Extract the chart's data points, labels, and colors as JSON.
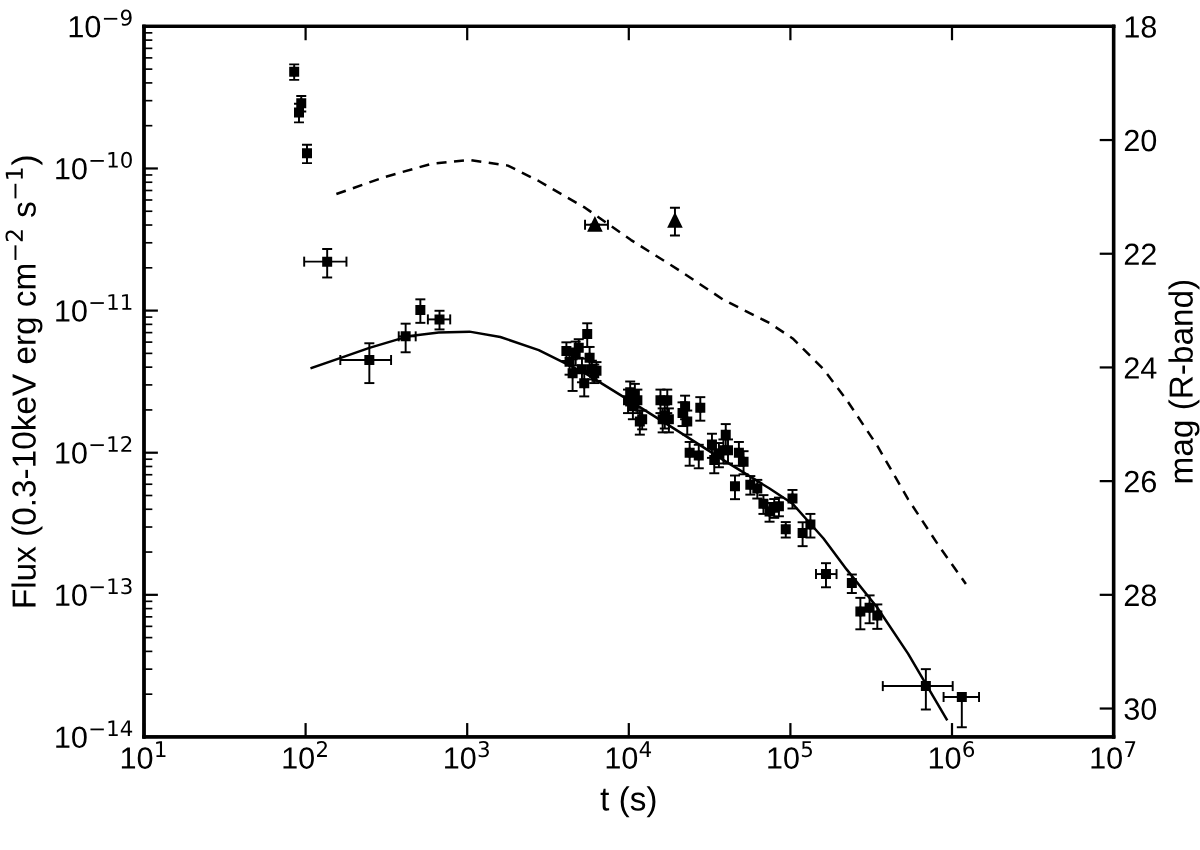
{
  "chart_data": {
    "type": "scatter",
    "xlabel": "t (s)",
    "ylabel": "Flux (0.3-10keV erg cm$^{−2}$ s$^{−1}$)",
    "y2label": "mag (R-band)",
    "log": "xy",
    "grid": false,
    "legend": false,
    "xlim": [
      10,
      10000000
    ],
    "xticks": [
      {
        "value": 10,
        "label": "10$^{1}$"
      },
      {
        "value": 100,
        "label": "10$^{2}$"
      },
      {
        "value": 1000,
        "label": "10$^{3}$"
      },
      {
        "value": 10000,
        "label": "10$^{4}$"
      },
      {
        "value": 100000,
        "label": "10$^{5}$"
      },
      {
        "value": 1000000,
        "label": "10$^{6}$"
      },
      {
        "value": 10000000,
        "label": "10$^{7}$"
      }
    ],
    "ylim": [
      1e-14,
      1e-09
    ],
    "yticks": [
      {
        "value": 1e-14,
        "label": "10$^{−14}$"
      },
      {
        "value": 1e-13,
        "label": "10$^{−13}$"
      },
      {
        "value": 1e-12,
        "label": "10$^{−12}$"
      },
      {
        "value": 1e-11,
        "label": "10$^{−11}$"
      },
      {
        "value": 1e-10,
        "label": "10$^{−10}$"
      },
      {
        "value": 1e-09,
        "label": "10$^{−9}$"
      }
    ],
    "y2lim": [
      30.5,
      18
    ],
    "y2ticks": [
      18,
      20,
      22,
      24,
      26,
      28,
      30
    ],
    "series": [
      {
        "type": "scatter",
        "marker": "square",
        "color": "#000000",
        "x": [
          85,
          91,
          94,
          102,
          136,
          248,
          416,
          513,
          674,
          4110,
          4300,
          4490,
          4690,
          4900,
          5130,
          5300,
          5530,
          5720,
          5910,
          6110,
          6310,
          9890,
          10200,
          10600,
          10900,
          11300,
          11700,
          12100,
          15700,
          16200,
          16700,
          17300,
          17700,
          21500,
          22300,
          23000,
          23800,
          27700,
          27100,
          32700,
          33800,
          36100,
          38500,
          39800,
          41100,
          45400,
          48000,
          51300,
          56500,
          62400,
          68100,
          74300,
          79400,
          84900,
          93600,
          103000,
          119000,
          133000,
          166000,
          240000,
          271000,
          309000,
          345000,
          689000,
          1150000
        ],
        "values": [
          4.8e-10,
          2.48e-10,
          2.88e-10,
          1.28e-10,
          2.21e-11,
          4.49e-12,
          6.59e-12,
          1.01e-11,
          8.67e-12,
          5.2e-12,
          4.37e-12,
          3.63e-12,
          5.08e-12,
          5.47e-12,
          3.86e-12,
          3.08e-12,
          6.84e-12,
          4.66e-12,
          3.86e-12,
          3.63e-12,
          3.77e-12,
          2.34e-12,
          2.66e-12,
          2.12e-12,
          2.56e-12,
          2.34e-12,
          1.66e-12,
          1.72e-12,
          2.34e-12,
          1.72e-12,
          1.83e-12,
          2.34e-12,
          1.72e-12,
          1.9e-12,
          2.12e-12,
          1.66e-12,
          1e-12,
          2.07e-12,
          9.57e-13,
          1.14e-12,
          8.87e-13,
          9.8e-13,
          1.04e-12,
          1.34e-12,
          1.04e-12,
          5.81e-13,
          1e-12,
          8.65e-13,
          5.96e-13,
          5.6e-13,
          4.37e-13,
          3.85e-13,
          4.1e-13,
          4.2e-13,
          2.89e-13,
          4.76e-13,
          2.72e-13,
          3.12e-13,
          1.4e-13,
          1.21e-13,
          7.62e-14,
          8.11e-14,
          7.16e-14,
          2.28e-14,
          1.91e-14
        ],
        "errors": [
          6e-11,
          3.7e-11,
          3.6e-11,
          1.9e-11,
          5e-12,
          1.4e-12,
          1.5e-12,
          1.9e-12,
          1.3e-12,
          7.8e-13,
          8.3e-13,
          9.1e-13,
          9.7e-13,
          8.2e-13,
          7.3e-13,
          5.9e-13,
          1.3e-12,
          8.9e-13,
          5.8e-13,
          5.4e-13,
          5.7e-13,
          4.4e-13,
          5.1e-13,
          4e-13,
          4.9e-13,
          4.4e-13,
          3.2e-13,
          2.6e-13,
          4.4e-13,
          3.3e-13,
          3.5e-13,
          4.4e-13,
          3.3e-13,
          3.6e-13,
          4e-13,
          3.2e-13,
          1.9e-13,
          3.9e-13,
          1.8e-13,
          2.2e-13,
          1.7e-13,
          1.9e-13,
          2e-13,
          2.5e-13,
          2e-13,
          1.1e-13,
          1.9e-13,
          1.6e-13,
          8.9e-14,
          8.4e-14,
          6.6e-14,
          5.8e-14,
          6.2e-14,
          6.3e-14,
          3.6e-14,
          7.1e-14,
          5.2e-14,
          5.9e-14,
          2.7e-14,
          1.8e-14,
          1.9e-14,
          1.8e-14,
          1.4e-14,
          7.2e-15,
          [
            1.17e-14,
            1.91e-14
          ]
        ],
        "xerrors": [
          null,
          null,
          null,
          null,
          [
            98,
            179
          ],
          [
            164,
            338
          ],
          [
            377,
            480
          ],
          null,
          [
            571,
            785
          ],
          null,
          null,
          null,
          null,
          null,
          null,
          null,
          null,
          null,
          null,
          null,
          null,
          null,
          null,
          null,
          null,
          null,
          null,
          null,
          null,
          null,
          null,
          null,
          null,
          null,
          null,
          null,
          null,
          null,
          null,
          null,
          null,
          null,
          null,
          null,
          null,
          null,
          null,
          null,
          null,
          null,
          null,
          null,
          null,
          null,
          null,
          null,
          null,
          null,
          [
            144000,
            193000
          ],
          null,
          null,
          null,
          null,
          [
            373000,
            1010000
          ],
          [
            887000,
            1470000
          ]
        ]
      },
      {
        "type": "line",
        "line_style": "solid",
        "color": "#000000",
        "x": [
          109,
          160,
          248,
          430,
          667,
          1033,
          1603,
          2772,
          5357,
          10330,
          19950,
          38540,
          74300,
          103300,
          160300,
          222800,
          345300,
          535700,
          926600
        ],
        "values": [
          3.95e-12,
          4.59e-12,
          5.47e-12,
          6.59e-12,
          7.02e-12,
          7.11e-12,
          6.52e-12,
          5.27e-12,
          3.63e-12,
          2.29e-12,
          1.43e-12,
          8.87e-13,
          5.6e-13,
          4.37e-13,
          2.49e-13,
          1.51e-13,
          8.11e-14,
          3.84e-14,
          1.33e-14
        ]
      },
      {
        "type": "scatter",
        "axis": "y2",
        "marker": "triangle",
        "color": "#000000",
        "x": [
          6170,
          19300
        ],
        "values": [
          21.49,
          21.42
        ],
        "errors": [
          null,
          [
            21.19,
            21.68
          ]
        ],
        "xerrors": [
          [
            5360,
            7430
          ],
          null
        ]
      },
      {
        "type": "line",
        "axis": "y2",
        "line_style": "dashed",
        "color": "#000000",
        "x": [
          155,
          309,
          597,
          1033,
          1786,
          2772,
          5357,
          10330,
          19950,
          38540,
          74300,
          103300,
          160300,
          222800,
          345300,
          535700,
          830000,
          1219000
        ],
        "values": [
          20.95,
          20.65,
          20.42,
          20.35,
          20.45,
          20.72,
          21.19,
          21.76,
          22.27,
          22.81,
          23.22,
          23.49,
          24.03,
          24.57,
          25.38,
          26.32,
          27.14,
          27.81
        ]
      }
    ]
  }
}
